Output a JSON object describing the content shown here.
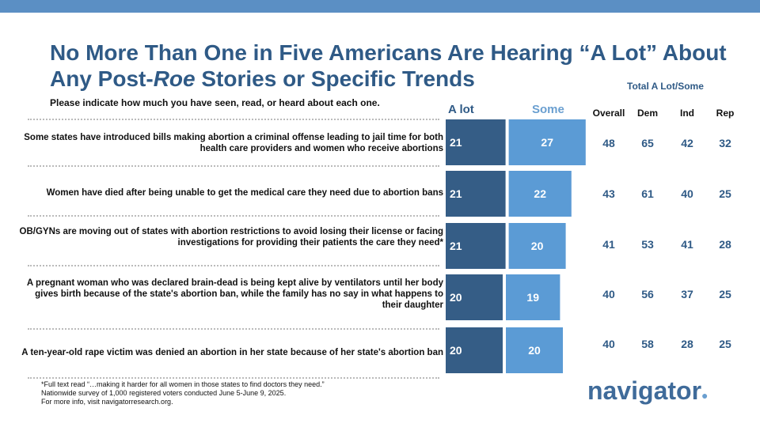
{
  "title_line1": "No More Than One in Five Americans Are Hearing “A Lot” About",
  "title_line2_prefix": "Any Post-",
  "title_line2_italic": "Roe",
  "title_line2_suffix": " Stories or Specific Trends",
  "subtitle": "Please indicate how much you have seen, read, or heard about each one.",
  "total_label": "Total A Lot/Some",
  "total_headers": [
    "Overall",
    "Dem",
    "Ind",
    "Rep"
  ],
  "colors": {
    "alot": "#355d86",
    "some": "#5b9bd5",
    "title": "#2f5a86",
    "topbar": "#5b8fc4"
  },
  "chart_data": {
    "type": "bar",
    "orientation": "horizontal-stacked",
    "series": [
      {
        "name": "A lot",
        "values": [
          21,
          21,
          21,
          20,
          20
        ]
      },
      {
        "name": "Some",
        "values": [
          27,
          22,
          20,
          19,
          20
        ]
      }
    ],
    "categories": [
      "Some states have introduced bills making abortion a criminal offense leading to jail time for both health care providers and women who receive abortions",
      "Women have died after being unable to get the medical care they need due to abortion bans",
      "OB/GYNs are moving out of states with abortion restrictions to avoid losing their license or facing investigations for providing their patients the care they need*",
      "A pregnant woman who was declared brain-dead is being kept alive by ventilators until her body gives birth because of the state's abortion ban, while the family has no say in what happens to their daughter",
      "A ten-year-old rape victim was denied an abortion in her state because of her state's abortion ban"
    ],
    "totals": [
      {
        "overall": "48",
        "dem": "65",
        "ind": "42",
        "rep": "32"
      },
      {
        "overall": "43",
        "dem": "61",
        "ind": "40",
        "rep": "25"
      },
      {
        "overall": "41",
        "dem": "53",
        "ind": "41",
        "rep": "28"
      },
      {
        "overall": "40",
        "dem": "56",
        "ind": "37",
        "rep": "25"
      },
      {
        "overall": "40",
        "dem": "58",
        "ind": "28",
        "rep": "25"
      }
    ]
  },
  "footnote": [
    "*Full text read “…making it harder for all women in those states to find doctors they need.”",
    "Nationwide survey of 1,000 registered voters conducted June 5-June 9, 2025.",
    "For more info, visit navigatorresearch.org."
  ],
  "logo_text": "navigator",
  "logo_dot": "●"
}
